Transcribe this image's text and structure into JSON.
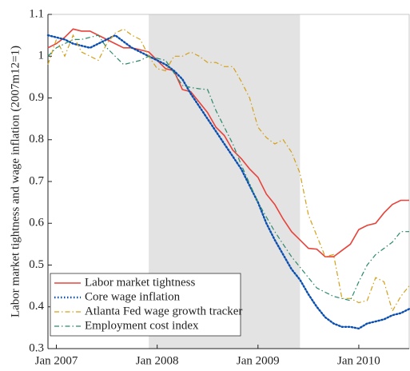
{
  "chart_data": {
    "type": "line",
    "ylabel": "Labor market tightness and wage inflation (2007m12=1)",
    "x": [
      "2006-12",
      "2007-01",
      "2007-02",
      "2007-03",
      "2007-04",
      "2007-05",
      "2007-06",
      "2007-07",
      "2007-08",
      "2007-09",
      "2007-10",
      "2007-11",
      "2007-12",
      "2008-01",
      "2008-02",
      "2008-03",
      "2008-04",
      "2008-05",
      "2008-06",
      "2008-07",
      "2008-08",
      "2008-09",
      "2008-10",
      "2008-11",
      "2008-12",
      "2009-01",
      "2009-02",
      "2009-03",
      "2009-04",
      "2009-05",
      "2009-06",
      "2009-07",
      "2009-08",
      "2009-09",
      "2009-10",
      "2009-11",
      "2009-12",
      "2010-01",
      "2010-02",
      "2010-03",
      "2010-04",
      "2010-05",
      "2010-06",
      "2010-07"
    ],
    "xlim": [
      "2006-12",
      "2010-07"
    ],
    "xticks": [
      {
        "value": "2007-01",
        "label": "Jan 2007"
      },
      {
        "value": "2008-01",
        "label": "Jan 2008"
      },
      {
        "value": "2009-01",
        "label": "Jan 2009"
      },
      {
        "value": "2010-01",
        "label": "Jan 2010"
      }
    ],
    "ylim": [
      0.3,
      1.1
    ],
    "yticks": [
      0.3,
      0.4,
      0.5,
      0.6,
      0.7,
      0.8,
      0.9,
      1,
      1.1
    ],
    "shaded_region": [
      "2007-12",
      "2009-06"
    ],
    "shade_color": "#e3e3e3",
    "legend": "lower left",
    "series": [
      {
        "name": "Labor market tightness",
        "color": "#e8423a",
        "style": "solid",
        "values": [
          1.02,
          1.03,
          1.045,
          1.065,
          1.06,
          1.06,
          1.05,
          1.04,
          1.03,
          1.02,
          1.02,
          1.015,
          1.01,
          0.99,
          0.97,
          0.965,
          0.92,
          0.915,
          0.89,
          0.865,
          0.83,
          0.81,
          0.775,
          0.755,
          0.73,
          0.71,
          0.67,
          0.645,
          0.61,
          0.58,
          0.56,
          0.54,
          0.538,
          0.52,
          0.52,
          0.535,
          0.55,
          0.585,
          0.595,
          0.6,
          0.625,
          0.645,
          0.655,
          0.655
        ]
      },
      {
        "name": "Core wage inflation",
        "color": "#0a4fb0",
        "style": "dotted",
        "values": [
          1.05,
          1.045,
          1.04,
          1.03,
          1.025,
          1.02,
          1.03,
          1.04,
          1.05,
          1.035,
          1.02,
          1.01,
          1.0,
          0.99,
          0.98,
          0.965,
          0.945,
          0.91,
          0.88,
          0.85,
          0.82,
          0.79,
          0.76,
          0.73,
          0.69,
          0.65,
          0.6,
          0.56,
          0.525,
          0.49,
          0.465,
          0.43,
          0.4,
          0.375,
          0.36,
          0.352,
          0.352,
          0.348,
          0.36,
          0.365,
          0.37,
          0.38,
          0.385,
          0.395
        ]
      },
      {
        "name": "Atlanta Fed wage growth tracker",
        "color": "#d4a017",
        "style": "dashdot",
        "values": [
          0.98,
          1.04,
          1.0,
          1.05,
          1.01,
          1.0,
          0.99,
          1.03,
          1.055,
          1.065,
          1.05,
          1.04,
          1.0,
          0.97,
          0.965,
          1.0,
          1.0,
          1.01,
          1.0,
          0.985,
          0.985,
          0.975,
          0.975,
          0.94,
          0.9,
          0.83,
          0.805,
          0.79,
          0.8,
          0.77,
          0.72,
          0.62,
          0.57,
          0.52,
          0.525,
          0.42,
          0.42,
          0.41,
          0.415,
          0.47,
          0.46,
          0.39,
          0.425,
          0.45
        ]
      },
      {
        "name": "Employment cost index",
        "color": "#2a8a6b",
        "style": "dashdot",
        "values": [
          1.0,
          1.02,
          1.03,
          1.04,
          1.04,
          1.045,
          1.05,
          1.02,
          1.0,
          0.98,
          0.985,
          0.99,
          1.0,
          0.995,
          0.99,
          0.96,
          0.93,
          0.925,
          0.922,
          0.92,
          0.87,
          0.83,
          0.79,
          0.74,
          0.695,
          0.65,
          0.615,
          0.58,
          0.55,
          0.52,
          0.495,
          0.47,
          0.445,
          0.435,
          0.425,
          0.42,
          0.415,
          0.46,
          0.5,
          0.525,
          0.54,
          0.555,
          0.58,
          0.58
        ]
      }
    ]
  }
}
